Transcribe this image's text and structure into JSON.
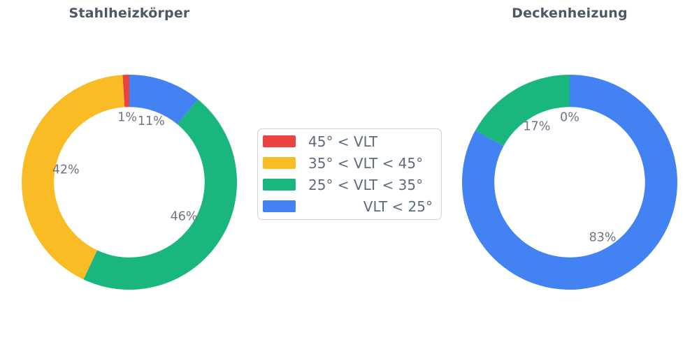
{
  "legend": {
    "items": [
      {
        "label": "45° < VLT",
        "color": "#eb4440"
      },
      {
        "label": "35° < VLT < 45°",
        "color": "#fabc25"
      },
      {
        "label": "25° < VLT < 35°",
        "color": "#19b77e"
      },
      {
        "label": "VLT < 25°",
        "color": "#4282f2"
      }
    ],
    "position": "center-between-charts",
    "border_color": "#d2d2d2"
  },
  "chart_data": [
    {
      "type": "pie",
      "subtype": "donut",
      "title": "Stahlheizkörper",
      "categories": [
        "45° < VLT",
        "35° < VLT < 45°",
        "25° < VLT < 35°",
        "VLT < 25°"
      ],
      "values_percent": [
        1,
        42,
        46,
        11
      ],
      "display_labels": [
        "1%",
        "42%",
        "46%",
        "11%"
      ],
      "colors": [
        "#eb4440",
        "#fabc25",
        "#19b77e",
        "#4282f2"
      ],
      "hole_ratio": 0.7,
      "start_angle_deg": 90,
      "direction": "counterclockwise",
      "label_distance": 0.6,
      "grid": false
    },
    {
      "type": "pie",
      "subtype": "donut",
      "title": "Deckenheizung",
      "categories": [
        "45° < VLT",
        "35° < VLT < 45°",
        "25° < VLT < 35°",
        "VLT < 25°"
      ],
      "values_percent": [
        0,
        0,
        17,
        83
      ],
      "display_labels": [
        "0%",
        "0%",
        "17%",
        "83%"
      ],
      "colors": [
        "#eb4440",
        "#fabc25",
        "#19b77e",
        "#4282f2"
      ],
      "hole_ratio": 0.7,
      "start_angle_deg": 90,
      "direction": "counterclockwise",
      "label_distance": 0.6,
      "grid": false
    }
  ],
  "text_colors": {
    "title": "#4d5765",
    "percent_labels": "#6e7582",
    "legend_text": "#5e6a7d"
  }
}
